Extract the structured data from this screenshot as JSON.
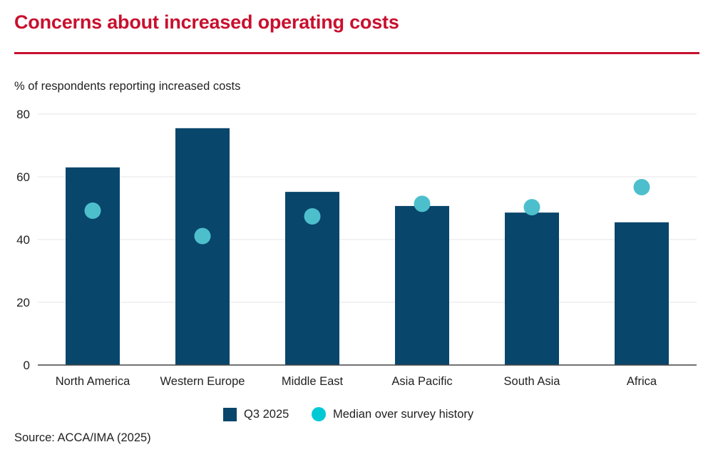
{
  "title": "Concerns about increased operating costs",
  "colors": {
    "title": "#c8102e",
    "rule": "#c8102e",
    "bar": "#08466b",
    "dot": "#4dbfcc",
    "legend_dot": "#00c9d6",
    "grid": "#e6e6e6",
    "axis": "#444444",
    "text": "#222222"
  },
  "legend": {
    "items": [
      {
        "label": "Q3 2025",
        "marker": "square"
      },
      {
        "label": "Median over survey history",
        "marker": "circle"
      }
    ]
  },
  "source": "Source: ACCA/IMA (2025)",
  "chart_data": {
    "type": "bar",
    "title": "Concerns about increased operating costs",
    "ylabel": "% of respondents reporting increased costs",
    "xlabel": "",
    "categories": [
      "North America",
      "Western Europe",
      "Middle East",
      "Asia Pacific",
      "South Asia",
      "Africa"
    ],
    "series": [
      {
        "name": "Q3 2025",
        "kind": "bar",
        "values": [
          63.0,
          75.5,
          55.2,
          50.7,
          48.6,
          45.5
        ]
      },
      {
        "name": "Median over survey history",
        "kind": "scatter",
        "values": [
          49.2,
          41.1,
          47.4,
          51.4,
          50.3,
          56.7
        ]
      }
    ],
    "ylim": [
      0,
      80
    ],
    "yticks": [
      0,
      20,
      40,
      60,
      80
    ],
    "grid": true,
    "legend_position": "bottom-center"
  }
}
